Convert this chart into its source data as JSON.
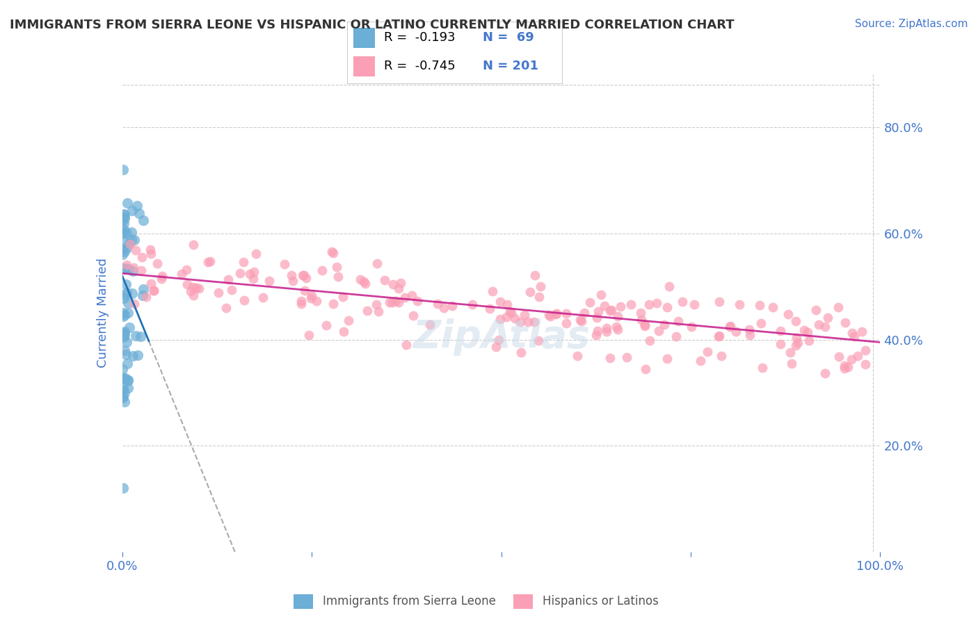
{
  "title": "IMMIGRANTS FROM SIERRA LEONE VS HISPANIC OR LATINO CURRENTLY MARRIED CORRELATION CHART",
  "source_text": "Source: ZipAtlas.com",
  "ylabel": "Currently Married",
  "legend_r1": "R =  -0.193",
  "legend_n1": "N =  69",
  "legend_r2": "R =  -0.745",
  "legend_n2": "N = 201",
  "color_blue": "#6baed6",
  "color_blue_dark": "#2171b5",
  "color_pink": "#fa9fb5",
  "color_pink_dark": "#c51b8a",
  "color_dashed": "#aaaaaa",
  "background_color": "#ffffff",
  "grid_color": "#cccccc",
  "title_color": "#333333",
  "axis_label_color": "#4477cc",
  "watermark": "ZipAtlas",
  "legend_label_blue": "Immigrants from Sierra Leone",
  "legend_label_pink": "Hispanics or Latinos"
}
